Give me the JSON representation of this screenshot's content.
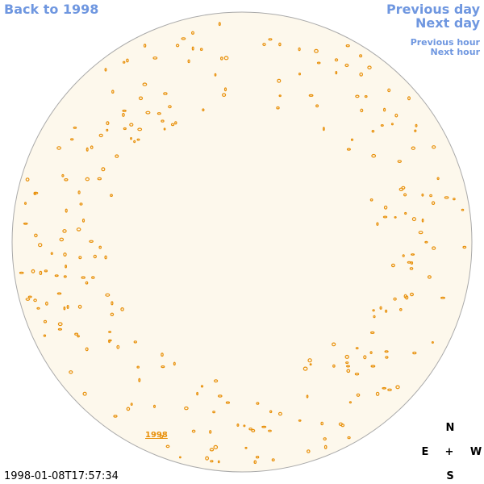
{
  "links": {
    "back": "Back to 1998",
    "previous_day": "Previous day",
    "next_day": "Next day",
    "previous_hour": "Previous hour",
    "next_hour": "Next hour"
  },
  "timestamp": "1998-01-08T17:57:34",
  "compass": {
    "north": "N",
    "east": "E",
    "center": "+",
    "west": "W",
    "south": "S"
  },
  "disk_label": "1998"
}
